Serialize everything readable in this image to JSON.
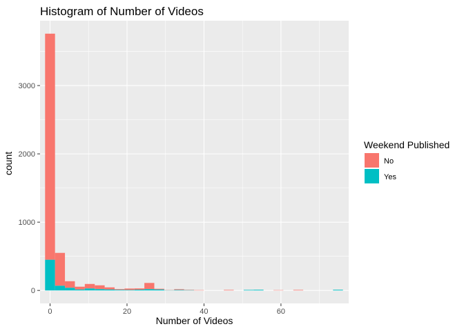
{
  "chart_data": {
    "type": "bar",
    "stacked": true,
    "title": "Histogram of Number of Videos",
    "xlabel": "Number of Videos",
    "ylabel": "count",
    "xlim": [
      -2.6,
      77.6
    ],
    "ylim": [
      -190,
      3950
    ],
    "xticks": [
      0,
      20,
      40,
      60
    ],
    "yticks": [
      0,
      1000,
      2000,
      3000
    ],
    "bin_width": 2.58,
    "bin_centers": [
      0,
      2.58,
      5.16,
      7.74,
      10.32,
      12.9,
      15.48,
      18.06,
      20.64,
      23.22,
      25.8,
      28.38,
      30.96,
      33.54,
      36.12,
      38.7,
      41.28,
      43.86,
      46.44,
      49.02,
      51.6,
      54.18,
      56.76,
      59.34,
      61.92,
      64.5,
      67.08,
      69.66,
      72.24,
      74.82
    ],
    "series": [
      {
        "name": "No",
        "color": "#F8766D",
        "values": [
          3310,
          480,
          95,
          40,
          65,
          55,
          30,
          10,
          20,
          18,
          90,
          10,
          3,
          10,
          5,
          5,
          0,
          0,
          8,
          0,
          0,
          0,
          0,
          5,
          0,
          8,
          0,
          0,
          0,
          0
        ]
      },
      {
        "name": "Yes",
        "color": "#00BFC4",
        "values": [
          450,
          70,
          40,
          15,
          30,
          20,
          15,
          10,
          8,
          12,
          20,
          15,
          3,
          8,
          5,
          0,
          0,
          0,
          0,
          0,
          8,
          10,
          0,
          0,
          0,
          0,
          0,
          0,
          0,
          10
        ]
      }
    ],
    "grid": true,
    "legend": {
      "title": "Weekend Published",
      "position": "right",
      "entries": [
        "No",
        "Yes"
      ]
    }
  }
}
